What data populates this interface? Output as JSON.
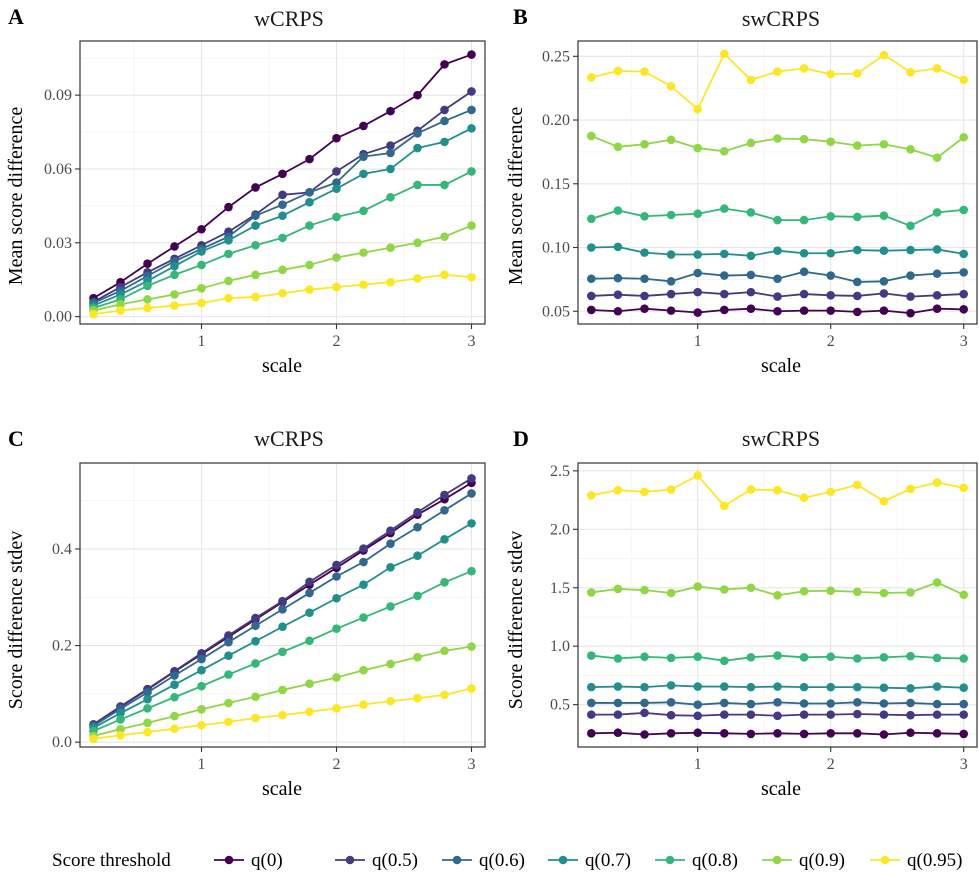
{
  "legend": {
    "title": "Score threshold",
    "position": "bottom"
  },
  "colors": {
    "q(0)": "#440154",
    "q(0.5)": "#443a83",
    "q(0.6)": "#31688e",
    "q(0.7)": "#21908d",
    "q(0.8)": "#35b779",
    "q(0.9)": "#8fd744",
    "q(0.95)": "#fde725"
  },
  "chart_data": [
    {
      "panel": "A",
      "type": "line",
      "title": "wCRPS",
      "xlabel": "scale",
      "ylabel": "Mean score difference",
      "xlim": [
        0.1,
        3.1
      ],
      "ylim": [
        -0.003,
        0.112
      ],
      "xticks": [
        1,
        2,
        3
      ],
      "xtick_labels": [
        "1",
        "2",
        "3"
      ],
      "yticks": [
        0,
        0.03,
        0.06,
        0.09
      ],
      "ytick_labels": [
        "0.00",
        "0.03",
        "0.06",
        "0.09"
      ],
      "grid": true,
      "x": [
        0.2,
        0.4,
        0.6,
        0.8,
        1.0,
        1.2,
        1.4,
        1.6,
        1.8,
        2.0,
        2.2,
        2.4,
        2.6,
        2.8,
        3.0
      ],
      "series": [
        {
          "name": "q(0)",
          "values": [
            0.0075,
            0.014,
            0.0215,
            0.0285,
            0.0355,
            0.0445,
            0.0525,
            0.058,
            0.064,
            0.0725,
            0.0775,
            0.0835,
            0.09,
            0.1025,
            0.1065
          ]
        },
        {
          "name": "q(0.5)",
          "values": [
            0.006,
            0.012,
            0.018,
            0.0235,
            0.029,
            0.0345,
            0.0415,
            0.0495,
            0.0505,
            0.059,
            0.066,
            0.0695,
            0.0755,
            0.084,
            0.0915
          ]
        },
        {
          "name": "q(0.6)",
          "values": [
            0.0055,
            0.0105,
            0.0165,
            0.0225,
            0.0275,
            0.0325,
            0.041,
            0.0455,
            0.0505,
            0.0545,
            0.065,
            0.0665,
            0.0745,
            0.0795,
            0.084
          ]
        },
        {
          "name": "q(0.7)",
          "values": [
            0.0045,
            0.009,
            0.0145,
            0.0205,
            0.0265,
            0.031,
            0.037,
            0.041,
            0.0465,
            0.052,
            0.058,
            0.06,
            0.0685,
            0.071,
            0.0765
          ]
        },
        {
          "name": "q(0.8)",
          "values": [
            0.0035,
            0.007,
            0.0125,
            0.017,
            0.021,
            0.0255,
            0.029,
            0.032,
            0.037,
            0.0405,
            0.043,
            0.0485,
            0.0535,
            0.0535,
            0.059
          ]
        },
        {
          "name": "q(0.9)",
          "values": [
            0.0025,
            0.005,
            0.007,
            0.009,
            0.0115,
            0.0145,
            0.017,
            0.019,
            0.021,
            0.024,
            0.026,
            0.028,
            0.03,
            0.0325,
            0.037
          ]
        },
        {
          "name": "q(0.95)",
          "values": [
            0.001,
            0.0025,
            0.0035,
            0.0045,
            0.0055,
            0.0075,
            0.008,
            0.0095,
            0.011,
            0.012,
            0.013,
            0.014,
            0.0155,
            0.017,
            0.016
          ]
        }
      ]
    },
    {
      "panel": "B",
      "type": "line",
      "title": "swCRPS",
      "xlabel": "scale",
      "ylabel": "Mean score difference",
      "xlim": [
        0.1,
        3.1
      ],
      "ylim": [
        0.04,
        0.262
      ],
      "xticks": [
        1,
        2,
        3
      ],
      "xtick_labels": [
        "1",
        "2",
        "3"
      ],
      "yticks": [
        0.05,
        0.1,
        0.15,
        0.2,
        0.25
      ],
      "ytick_labels": [
        "0.05",
        "0.10",
        "0.15",
        "0.20",
        "0.25"
      ],
      "grid": true,
      "x": [
        0.2,
        0.4,
        0.6,
        0.8,
        1.0,
        1.2,
        1.4,
        1.6,
        1.8,
        2.0,
        2.2,
        2.4,
        2.6,
        2.8,
        3.0
      ],
      "series": [
        {
          "name": "q(0)",
          "values": [
            0.051,
            0.05,
            0.052,
            0.0505,
            0.049,
            0.051,
            0.052,
            0.05,
            0.0505,
            0.0505,
            0.0495,
            0.0505,
            0.0485,
            0.052,
            0.0515
          ]
        },
        {
          "name": "q(0.5)",
          "values": [
            0.062,
            0.063,
            0.062,
            0.0635,
            0.065,
            0.0635,
            0.065,
            0.0615,
            0.0635,
            0.0625,
            0.062,
            0.064,
            0.0615,
            0.0625,
            0.0635
          ]
        },
        {
          "name": "q(0.6)",
          "values": [
            0.0755,
            0.076,
            0.0755,
            0.0735,
            0.08,
            0.078,
            0.0785,
            0.0755,
            0.081,
            0.078,
            0.073,
            0.0735,
            0.078,
            0.0795,
            0.0805
          ]
        },
        {
          "name": "q(0.7)",
          "values": [
            0.1,
            0.1005,
            0.096,
            0.0945,
            0.0945,
            0.095,
            0.0935,
            0.0975,
            0.0955,
            0.0955,
            0.098,
            0.0975,
            0.098,
            0.0985,
            0.095
          ]
        },
        {
          "name": "q(0.8)",
          "values": [
            0.1225,
            0.129,
            0.1245,
            0.1255,
            0.1265,
            0.1305,
            0.1275,
            0.1215,
            0.1215,
            0.1245,
            0.124,
            0.125,
            0.117,
            0.1275,
            0.1295
          ]
        },
        {
          "name": "q(0.9)",
          "values": [
            0.1875,
            0.179,
            0.181,
            0.1845,
            0.178,
            0.1755,
            0.182,
            0.1855,
            0.185,
            0.183,
            0.18,
            0.181,
            0.177,
            0.1705,
            0.1865
          ]
        },
        {
          "name": "q(0.95)",
          "values": [
            0.2335,
            0.2385,
            0.238,
            0.2265,
            0.2085,
            0.252,
            0.2315,
            0.238,
            0.2405,
            0.236,
            0.2365,
            0.251,
            0.2375,
            0.2405,
            0.2315
          ]
        }
      ]
    },
    {
      "panel": "C",
      "type": "line",
      "title": "wCRPS",
      "xlabel": "scale",
      "ylabel": "Score difference stdev",
      "xlim": [
        0.1,
        3.1
      ],
      "ylim": [
        -0.01,
        0.578
      ],
      "xticks": [
        1,
        2,
        3
      ],
      "xtick_labels": [
        "1",
        "2",
        "3"
      ],
      "yticks": [
        0,
        0.2,
        0.4
      ],
      "ytick_labels": [
        "0.0",
        "0.2",
        "0.4"
      ],
      "grid": true,
      "x": [
        0.2,
        0.4,
        0.6,
        0.8,
        1.0,
        1.2,
        1.4,
        1.6,
        1.8,
        2.0,
        2.2,
        2.4,
        2.6,
        2.8,
        3.0
      ],
      "series": [
        {
          "name": "q(0)",
          "values": [
            0.036,
            0.073,
            0.109,
            0.146,
            0.182,
            0.218,
            0.254,
            0.29,
            0.326,
            0.361,
            0.397,
            0.433,
            0.471,
            0.503,
            0.537
          ]
        },
        {
          "name": "q(0.5)",
          "values": [
            0.037,
            0.074,
            0.11,
            0.147,
            0.184,
            0.221,
            0.257,
            0.292,
            0.332,
            0.367,
            0.401,
            0.438,
            0.476,
            0.512,
            0.546
          ]
        },
        {
          "name": "q(0.6)",
          "values": [
            0.034,
            0.069,
            0.103,
            0.138,
            0.172,
            0.207,
            0.241,
            0.275,
            0.309,
            0.343,
            0.373,
            0.411,
            0.445,
            0.48,
            0.515
          ]
        },
        {
          "name": "q(0.7)",
          "values": [
            0.03,
            0.06,
            0.089,
            0.119,
            0.149,
            0.179,
            0.209,
            0.239,
            0.268,
            0.298,
            0.326,
            0.362,
            0.386,
            0.42,
            0.453
          ]
        },
        {
          "name": "q(0.8)",
          "values": [
            0.023,
            0.047,
            0.07,
            0.093,
            0.116,
            0.14,
            0.163,
            0.187,
            0.21,
            0.235,
            0.258,
            0.281,
            0.303,
            0.331,
            0.354
          ]
        },
        {
          "name": "q(0.9)",
          "values": [
            0.013,
            0.027,
            0.04,
            0.054,
            0.068,
            0.081,
            0.094,
            0.108,
            0.121,
            0.134,
            0.149,
            0.162,
            0.176,
            0.189,
            0.198
          ]
        },
        {
          "name": "q(0.95)",
          "values": [
            0.007,
            0.014,
            0.021,
            0.028,
            0.035,
            0.042,
            0.05,
            0.056,
            0.063,
            0.07,
            0.078,
            0.085,
            0.091,
            0.098,
            0.111
          ]
        }
      ]
    },
    {
      "panel": "D",
      "type": "line",
      "title": "swCRPS",
      "xlabel": "scale",
      "ylabel": "Score difference stdev",
      "xlim": [
        0.1,
        3.1
      ],
      "ylim": [
        0.138,
        2.567
      ],
      "xticks": [
        1,
        2,
        3
      ],
      "xtick_labels": [
        "1",
        "2",
        "3"
      ],
      "yticks": [
        0.5,
        1.0,
        1.5,
        2.0,
        2.5
      ],
      "ytick_labels": [
        "0.5",
        "1.0",
        "1.5",
        "2.0",
        "2.5"
      ],
      "grid": true,
      "x": [
        0.2,
        0.4,
        0.6,
        0.8,
        1.0,
        1.2,
        1.4,
        1.6,
        1.8,
        2.0,
        2.2,
        2.4,
        2.6,
        2.8,
        3.0
      ],
      "series": [
        {
          "name": "q(0)",
          "values": [
            0.255,
            0.26,
            0.245,
            0.255,
            0.26,
            0.255,
            0.25,
            0.255,
            0.25,
            0.255,
            0.255,
            0.245,
            0.26,
            0.255,
            0.25
          ]
        },
        {
          "name": "q(0.5)",
          "values": [
            0.415,
            0.415,
            0.43,
            0.41,
            0.405,
            0.415,
            0.415,
            0.405,
            0.415,
            0.415,
            0.42,
            0.415,
            0.41,
            0.415,
            0.415
          ]
        },
        {
          "name": "q(0.6)",
          "values": [
            0.515,
            0.515,
            0.515,
            0.52,
            0.5,
            0.515,
            0.505,
            0.52,
            0.51,
            0.51,
            0.52,
            0.51,
            0.515,
            0.505,
            0.505
          ]
        },
        {
          "name": "q(0.7)",
          "values": [
            0.65,
            0.655,
            0.65,
            0.665,
            0.655,
            0.655,
            0.65,
            0.655,
            0.65,
            0.65,
            0.65,
            0.645,
            0.64,
            0.655,
            0.645
          ]
        },
        {
          "name": "q(0.8)",
          "values": [
            0.92,
            0.895,
            0.91,
            0.9,
            0.91,
            0.875,
            0.905,
            0.92,
            0.905,
            0.91,
            0.895,
            0.905,
            0.915,
            0.9,
            0.895
          ]
        },
        {
          "name": "q(0.9)",
          "values": [
            1.46,
            1.49,
            1.48,
            1.455,
            1.51,
            1.485,
            1.5,
            1.435,
            1.47,
            1.475,
            1.465,
            1.455,
            1.46,
            1.545,
            1.44
          ]
        },
        {
          "name": "q(0.95)",
          "values": [
            2.29,
            2.335,
            2.32,
            2.34,
            2.46,
            2.2,
            2.34,
            2.335,
            2.27,
            2.32,
            2.38,
            2.24,
            2.345,
            2.4,
            2.355
          ]
        }
      ]
    }
  ]
}
